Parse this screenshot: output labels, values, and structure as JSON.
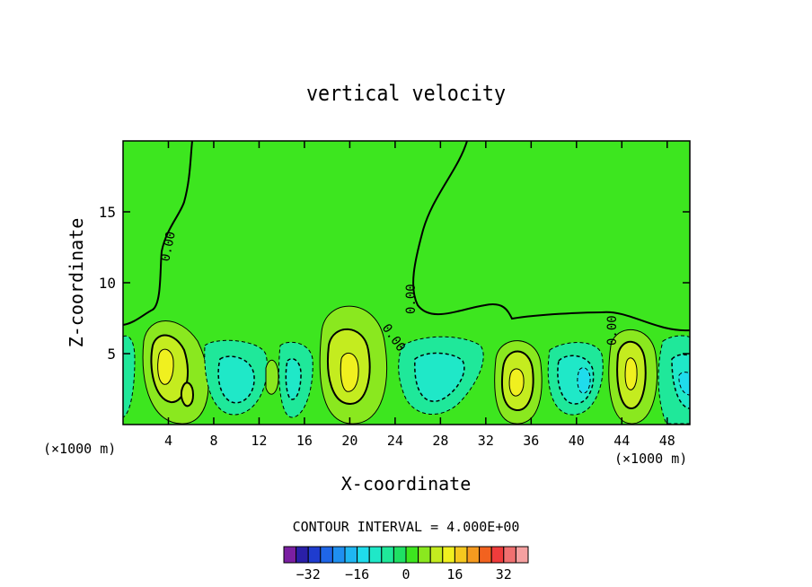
{
  "chart_data": {
    "type": "heatmap",
    "title": "vertical velocity",
    "xlabel": "X-coordinate",
    "ylabel": "Z-coordinate",
    "x_unit_left": "(×1000 m)",
    "x_unit_right": "(×1000 m)",
    "x_ticks": [
      4,
      8,
      12,
      16,
      20,
      24,
      28,
      32,
      36,
      40,
      44,
      48
    ],
    "y_ticks": [
      5,
      10,
      15
    ],
    "xlim": [
      0,
      50
    ],
    "ylim": [
      0,
      20
    ],
    "contour_interval_text": "CONTOUR INTERVAL = 4.000E+00",
    "contour_label": "0.00",
    "colorbar": {
      "levels": [
        -36,
        -32,
        -28,
        -24,
        -20,
        -16,
        -12,
        -8,
        -4,
        0,
        4,
        8,
        12,
        16,
        20,
        24,
        28,
        32,
        36
      ],
      "colors": [
        "#7a1fa2",
        "#2a1fa8",
        "#1f3ccf",
        "#1f66e8",
        "#1f8ff0",
        "#1fb6f2",
        "#1fdcec",
        "#1fe8c8",
        "#1fe89a",
        "#1fe064",
        "#3de61f",
        "#8ae81f",
        "#c4ec1f",
        "#f0f01f",
        "#f5c81f",
        "#f59a1f",
        "#f2621f",
        "#f03c3c",
        "#f07070",
        "#f5a0a0"
      ],
      "tick_labels": [
        "−32",
        "−16",
        "0",
        "16",
        "32"
      ],
      "tick_values": [
        -32,
        -16,
        0,
        16,
        32
      ]
    },
    "updrafts": [
      {
        "x": 3.6,
        "z": 3.5,
        "peak": 14
      },
      {
        "x": 6.0,
        "z": 2.0,
        "peak": 9
      },
      {
        "x": 20.0,
        "z": 3.8,
        "peak": 14
      },
      {
        "x": 34.6,
        "z": 3.0,
        "peak": 13
      },
      {
        "x": 44.8,
        "z": 3.5,
        "peak": 14
      }
    ],
    "downdrafts": [
      {
        "x": 10.5,
        "z": 3.2,
        "peak": -8
      },
      {
        "x": 14.5,
        "z": 3.0,
        "peak": -6
      },
      {
        "x": 27.5,
        "z": 3.0,
        "peak": -10
      },
      {
        "x": 40.5,
        "z": 3.0,
        "peak": -12
      },
      {
        "x": 49.5,
        "z": 3.0,
        "peak": -10
      }
    ]
  }
}
